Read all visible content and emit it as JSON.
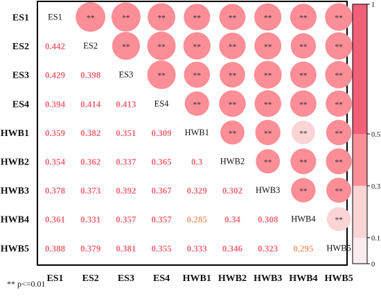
{
  "chart_data": {
    "type": "heatmap",
    "variables": [
      "ES1",
      "ES2",
      "ES3",
      "ES4",
      "HWB1",
      "HWB2",
      "HWB3",
      "HWB4",
      "HWB5"
    ],
    "lower_values": [
      [
        null,
        null,
        null,
        null,
        null,
        null,
        null,
        null,
        null
      ],
      [
        "0.442",
        null,
        null,
        null,
        null,
        null,
        null,
        null,
        null
      ],
      [
        "0.429",
        "0.398",
        null,
        null,
        null,
        null,
        null,
        null,
        null
      ],
      [
        "0.394",
        "0.414",
        "0.413",
        null,
        null,
        null,
        null,
        null,
        null
      ],
      [
        "0.359",
        "0.382",
        "0.351",
        "0.309",
        null,
        null,
        null,
        null,
        null
      ],
      [
        "0.354",
        "0.362",
        "0.337",
        "0.365",
        "0.3",
        null,
        null,
        null,
        null
      ],
      [
        "0.378",
        "0.373",
        "0.392",
        "0.367",
        "0.329",
        "0.302",
        null,
        null,
        null
      ],
      [
        "0.361",
        "0.331",
        "0.357",
        "0.357",
        "0.285",
        "0.34",
        "0.308",
        null,
        null
      ],
      [
        "0.388",
        "0.379",
        "0.381",
        "0.355",
        "0.333",
        "0.346",
        "0.323",
        "0.295",
        null
      ]
    ],
    "significance_marker": "**",
    "colorbar": {
      "ticks": [
        "1",
        "0.5",
        "0.3",
        "0.1",
        "0"
      ],
      "bands": [
        {
          "from": 0,
          "to": 0.1,
          "color": "#fdecef"
        },
        {
          "from": 0.1,
          "to": 0.3,
          "color": "#fbd4d5"
        },
        {
          "from": 0.3,
          "to": 0.5,
          "color": "#fb8e96"
        },
        {
          "from": 0.5,
          "to": 1.0,
          "color": "#f06078"
        }
      ]
    },
    "value_colors": {
      "high": "#f06a78",
      "low": "#f2a07a"
    },
    "footnote": "** p<=0.01"
  }
}
